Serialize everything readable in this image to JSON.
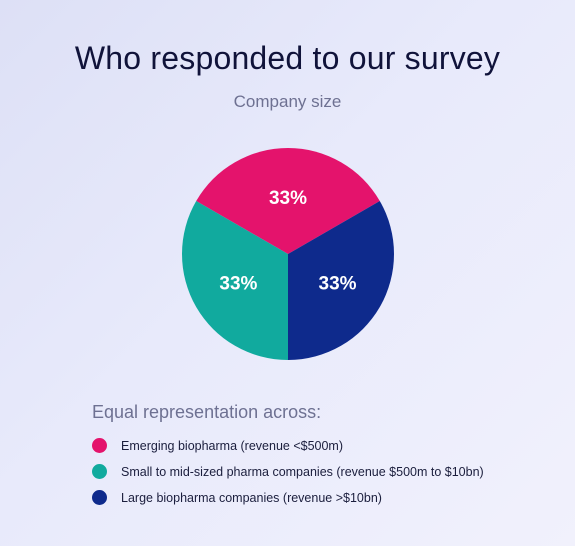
{
  "title": "Who responded to our survey",
  "subtitle": "Company size",
  "legend_heading": "Equal representation across:",
  "chart_data": {
    "type": "pie",
    "title": "Who responded to our survey",
    "subtitle": "Company size",
    "slices": [
      {
        "label": "Emerging biopharma (revenue <$500m)",
        "value": 33,
        "display": "33%",
        "color": "#e4136c"
      },
      {
        "label": "Small to mid-sized pharma companies (revenue $500m to $10bn)",
        "value": 33,
        "display": "33%",
        "color": "#11aa9e"
      },
      {
        "label": "Large biopharma companies (revenue >$10bn)",
        "value": 33,
        "display": "33%",
        "color": "#0e2a8c"
      }
    ],
    "legend_position": "bottom-left"
  }
}
